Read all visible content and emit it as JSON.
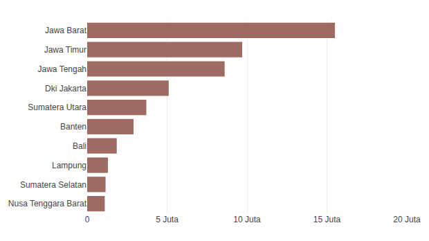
{
  "chart_data": {
    "type": "bar",
    "orientation": "horizontal",
    "categories": [
      "Nusa Tenggara Barat",
      "Sumatera Selatan",
      "Lampung",
      "Bali",
      "Banten",
      "Sumatera Utara",
      "Dki Jakarta",
      "Jawa Tengah",
      "Jawa Timur",
      "Jawa Barat"
    ],
    "values": [
      1.1,
      1.15,
      1.3,
      1.85,
      2.9,
      3.7,
      5.1,
      8.6,
      9.7,
      15.5
    ],
    "color": "#9e6b63",
    "xlim": [
      0,
      20
    ],
    "xticks": [
      0,
      {
        "value": 5,
        "label": "5 Juta"
      },
      {
        "value": 10,
        "label": "10 Juta"
      },
      {
        "value": 15,
        "label": "15 Juta"
      },
      {
        "value": 20,
        "label": "20 Juta"
      }
    ],
    "grid": true
  }
}
